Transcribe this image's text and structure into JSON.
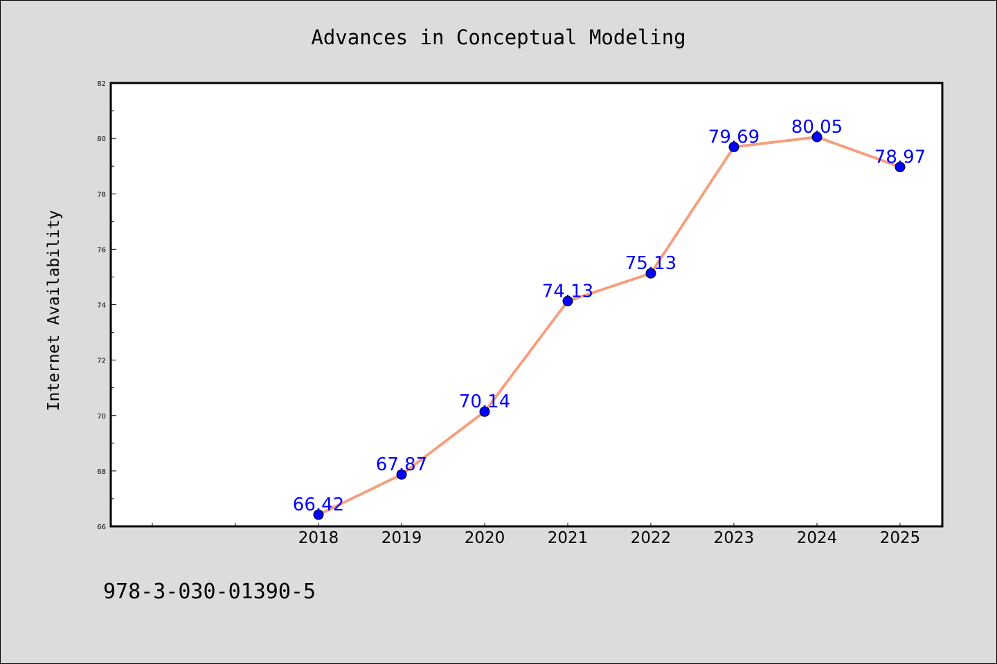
{
  "footer": {
    "isbn": "978-3-030-01390-5"
  },
  "chart_data": {
    "type": "line",
    "title": "Advances in Conceptual Modeling",
    "xlabel": "",
    "ylabel": "Internet Availability",
    "x": [
      "2018",
      "2019",
      "2020",
      "2021",
      "2022",
      "2023",
      "2024",
      "2025"
    ],
    "series": [
      {
        "values": [
          66.42,
          67.87,
          70.14,
          74.13,
          75.13,
          79.69,
          80.05,
          78.97
        ],
        "line_color": "#f4a07e",
        "marker_color": "#0000ff",
        "label_color": "#0000ff"
      }
    ],
    "yticks": [
      66,
      68,
      70,
      72,
      74,
      76,
      78,
      80,
      82
    ],
    "ylim": [
      66,
      82
    ],
    "grid": false,
    "legend": "none",
    "data_labels": true
  }
}
